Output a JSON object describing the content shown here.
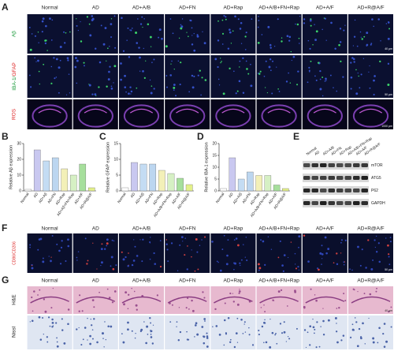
{
  "panel_labels": [
    "A",
    "B",
    "C",
    "D",
    "E",
    "F",
    "G"
  ],
  "groups": [
    "Normal",
    "AD",
    "AD+A/B",
    "AD+FN",
    "AD+Rap",
    "AD+A/B+FN+Rap",
    "AD+A/F",
    "AD+R@A/F"
  ],
  "panel_a": {
    "rows": [
      "Aβ",
      "IBA-1/",
      "GFAP",
      "ROS"
    ],
    "scale_bars": [
      "40 μm",
      "50 μm",
      "1000 μm"
    ]
  },
  "chart_data": [
    {
      "type": "bar",
      "ylabel": "Relative Aβ expression",
      "categories": [
        "Normal",
        "AD",
        "AD+Aβ",
        "AD+FN",
        "AD+Rap",
        "AD+Aβ+FN+Rap",
        "AD+A/F",
        "AD+R@A/F"
      ],
      "values": [
        1,
        26,
        19,
        21,
        14,
        10,
        17,
        2
      ],
      "colors": [
        "#ffffff",
        "#c9c8f0",
        "#c4dcf3",
        "#bcd6f0",
        "#f3f0b8",
        "#d6f0c4",
        "#a6df9c",
        "#e3f08a"
      ],
      "ylim": [
        0,
        30
      ],
      "yticks": [
        0,
        10,
        20,
        30
      ]
    },
    {
      "type": "bar",
      "ylabel": "Relative GFAP expression",
      "categories": [
        "Normal",
        "AD",
        "AD+A/β",
        "AD+FN",
        "AD+Rap",
        "AD+A/B+FN+Rap",
        "AD+A/F",
        "AD+R@A/F"
      ],
      "values": [
        1,
        9,
        8.5,
        8.5,
        6.5,
        5.5,
        4,
        2
      ],
      "colors": [
        "#ffffff",
        "#c9c8f0",
        "#c4dcf3",
        "#bcd6f0",
        "#f3f0b8",
        "#d6f0c4",
        "#a6df9c",
        "#e3f08a"
      ],
      "ylim": [
        0,
        15
      ],
      "yticks": [
        0,
        5,
        10,
        15
      ]
    },
    {
      "type": "bar",
      "ylabel": "Relative IBA-1 expression",
      "categories": [
        "Normal",
        "AD",
        "AD+A/β",
        "AD+FN",
        "AD+Rap",
        "AD+A/B+FN+Rap",
        "AD+A/F",
        "AD+R@A/F"
      ],
      "values": [
        1,
        14,
        5,
        8,
        6.5,
        6.5,
        2.5,
        1
      ],
      "colors": [
        "#ffffff",
        "#c9c8f0",
        "#c4dcf3",
        "#bcd6f0",
        "#f3f0b8",
        "#d6f0c4",
        "#a6df9c",
        "#e3f08a"
      ],
      "ylim": [
        0,
        20
      ],
      "yticks": [
        0,
        5,
        10,
        15,
        20
      ]
    }
  ],
  "panel_e": {
    "proteins": [
      "mTOR",
      "ATG5",
      "P62",
      "GAPDH"
    ]
  },
  "panel_f": {
    "row_label": "CD86/CD206",
    "scale_bar": "50 μm"
  },
  "panel_g": {
    "rows": [
      "H&E",
      "Nissl"
    ],
    "scale_bar": "40 μm"
  }
}
